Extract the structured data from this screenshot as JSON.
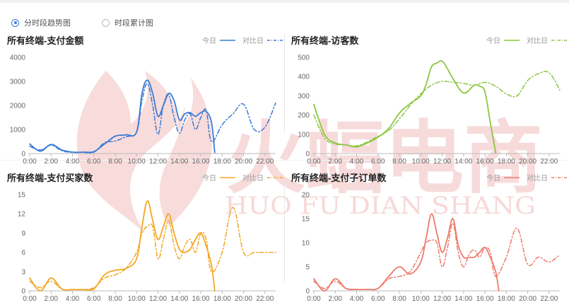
{
  "mode": {
    "options": [
      {
        "label": "分时段趋势图",
        "selected": true
      },
      {
        "label": "时段累计图",
        "selected": false
      }
    ]
  },
  "watermark": {
    "text_cn": "火蝠电商",
    "text_en": "HUO FU DIAN SHANG",
    "color": "#f2c3c3"
  },
  "legend": {
    "today": "今日",
    "compare": "对比日"
  },
  "chart_data": [
    {
      "type": "line",
      "title": "所有终端-支付金额",
      "color": "#3a7bd5",
      "ylim": [
        0,
        4000
      ],
      "yticks": [
        0,
        1000,
        2000,
        3000,
        4000
      ],
      "xticks": [
        "0:00",
        "2:00",
        "4:00",
        "6:00",
        "8:00",
        "10:00",
        "12:00",
        "14:00",
        "16:00",
        "18:00",
        "20:00",
        "22:00"
      ],
      "series": [
        {
          "name": "今日",
          "style": "solid",
          "x": [
            0,
            1,
            2,
            3,
            4,
            5,
            6,
            7,
            8,
            9,
            10,
            10.5,
            11,
            11.5,
            12,
            12.5,
            13,
            13.5,
            14,
            14.5,
            15,
            15.5,
            16,
            16.5,
            17,
            17.3
          ],
          "y": [
            400,
            100,
            380,
            150,
            60,
            60,
            80,
            400,
            720,
            780,
            900,
            2500,
            3050,
            2500,
            1550,
            2000,
            2500,
            2200,
            1400,
            1650,
            1700,
            1550,
            1700,
            1750,
            1300,
            50
          ]
        },
        {
          "name": "对比日",
          "style": "dashdot",
          "x": [
            0,
            1,
            2,
            3,
            4,
            5,
            6,
            7,
            8,
            9,
            10,
            10.5,
            11,
            11.5,
            12,
            12.5,
            13,
            13.5,
            14,
            14.5,
            15,
            15.5,
            16,
            16.5,
            17,
            18,
            19,
            20,
            21,
            22,
            23
          ],
          "y": [
            300,
            150,
            350,
            120,
            50,
            50,
            60,
            450,
            520,
            700,
            900,
            2200,
            2900,
            2000,
            800,
            2000,
            2450,
            1500,
            850,
            1400,
            1650,
            1000,
            1500,
            1800,
            500,
            1200,
            1650,
            2050,
            1000,
            1100,
            2100
          ]
        }
      ]
    },
    {
      "type": "line",
      "title": "所有终端-访客数",
      "color": "#8cc63f",
      "ylim": [
        0,
        500
      ],
      "yticks": [
        0,
        100,
        200,
        300,
        400,
        500
      ],
      "xticks": [
        "0:00",
        "2:00",
        "4:00",
        "6:00",
        "8:00",
        "10:00",
        "12:00",
        "14:00",
        "16:00",
        "18:00",
        "20:00",
        "22:00"
      ],
      "series": [
        {
          "name": "今日",
          "style": "solid",
          "x": [
            0,
            1,
            2,
            3,
            4,
            5,
            6,
            7,
            8,
            9,
            10,
            10.5,
            11,
            11.5,
            12,
            12.5,
            13,
            14,
            15,
            15.5,
            16,
            16.5,
            17
          ],
          "y": [
            255,
            100,
            55,
            45,
            35,
            55,
            85,
            130,
            210,
            260,
            300,
            360,
            450,
            470,
            480,
            440,
            390,
            315,
            355,
            350,
            320,
            160,
            5
          ]
        },
        {
          "name": "对比日",
          "style": "dashdot",
          "x": [
            0,
            1,
            2,
            3,
            4,
            5,
            6,
            7,
            8,
            9,
            10,
            11,
            12,
            13,
            14,
            15,
            16,
            17,
            18,
            19,
            20,
            21,
            22,
            23
          ],
          "y": [
            200,
            80,
            50,
            45,
            40,
            60,
            90,
            120,
            180,
            250,
            310,
            355,
            375,
            370,
            365,
            355,
            370,
            350,
            310,
            300,
            380,
            415,
            420,
            330
          ]
        }
      ]
    },
    {
      "type": "line",
      "title": "所有终端-支付买家数",
      "color": "#f5a623",
      "ylim": [
        0,
        15
      ],
      "yticks": [
        0,
        3,
        6,
        9,
        12,
        15
      ],
      "xticks": [
        "0:00",
        "2:00",
        "4:00",
        "6:00",
        "8:00",
        "10:00",
        "12:00",
        "14:00",
        "16:00",
        "18:00",
        "20:00",
        "22:00"
      ],
      "series": [
        {
          "name": "今日",
          "style": "solid",
          "x": [
            0,
            1,
            2,
            3,
            4,
            5,
            6,
            7,
            8,
            9,
            10,
            10.5,
            11,
            11.5,
            12,
            12.5,
            13,
            13.5,
            14,
            14.5,
            15,
            15.5,
            16,
            16.5,
            17,
            17.3
          ],
          "y": [
            2,
            0,
            2,
            0.3,
            0.2,
            0.2,
            0.3,
            2.5,
            3.2,
            3.5,
            5,
            10,
            14,
            11,
            8,
            10,
            12,
            9,
            6.5,
            6,
            6.5,
            8,
            9,
            7,
            4,
            0
          ]
        },
        {
          "name": "对比日",
          "style": "dashdot",
          "x": [
            0,
            1,
            2,
            3,
            4,
            5,
            6,
            7,
            8,
            9,
            10,
            10.5,
            11,
            11.5,
            12,
            12.5,
            13,
            13.5,
            14,
            14.5,
            15,
            15.5,
            16,
            16.5,
            17,
            18,
            19,
            20,
            21,
            22,
            23
          ],
          "y": [
            1.5,
            0.5,
            1.5,
            0.3,
            0.2,
            0.2,
            0.5,
            2,
            2.5,
            3.5,
            6,
            9,
            10,
            10,
            5,
            8,
            11,
            7,
            5,
            7,
            8,
            6,
            9,
            8,
            3,
            6,
            13,
            6,
            6,
            6,
            6
          ]
        }
      ]
    },
    {
      "type": "line",
      "title": "所有终端-支付子订单数",
      "color": "#ef7a6b",
      "ylim": [
        0,
        20
      ],
      "yticks": [
        0,
        5,
        10,
        15,
        20
      ],
      "xticks": [
        "0:00",
        "2:00",
        "4:00",
        "6:00",
        "8:00",
        "10:00",
        "12:00",
        "14:00",
        "16:00",
        "18:00",
        "20:00",
        "22:00"
      ],
      "series": [
        {
          "name": "今日",
          "style": "solid",
          "x": [
            0,
            1,
            2,
            3,
            4,
            5,
            6,
            7,
            8,
            9,
            10,
            10.5,
            11,
            11.5,
            12,
            12.5,
            13,
            13.5,
            14,
            14.5,
            15,
            15.5,
            16,
            16.5,
            17,
            17.3
          ],
          "y": [
            2.5,
            0,
            2.5,
            0.5,
            0.3,
            0.3,
            0.5,
            3,
            5,
            3.5,
            6,
            11,
            16,
            12,
            8,
            11,
            15,
            9.5,
            7,
            7,
            7,
            8,
            9,
            7,
            4,
            0
          ]
        },
        {
          "name": "对比日",
          "style": "dashdot",
          "x": [
            0,
            1,
            2,
            3,
            4,
            5,
            6,
            7,
            8,
            9,
            10,
            10.5,
            11,
            11.5,
            12,
            12.5,
            13,
            13.5,
            14,
            14.5,
            15,
            15.5,
            16,
            16.5,
            17,
            18,
            19,
            20,
            21,
            22,
            23
          ],
          "y": [
            2,
            0.5,
            2,
            0.5,
            0.3,
            0.3,
            0.5,
            2.5,
            3,
            4,
            8,
            10,
            10.5,
            10,
            5,
            9,
            14,
            8,
            5,
            7.5,
            8.5,
            7,
            9,
            8,
            3,
            7,
            13,
            5.5,
            7,
            6,
            7.5
          ]
        }
      ]
    }
  ]
}
